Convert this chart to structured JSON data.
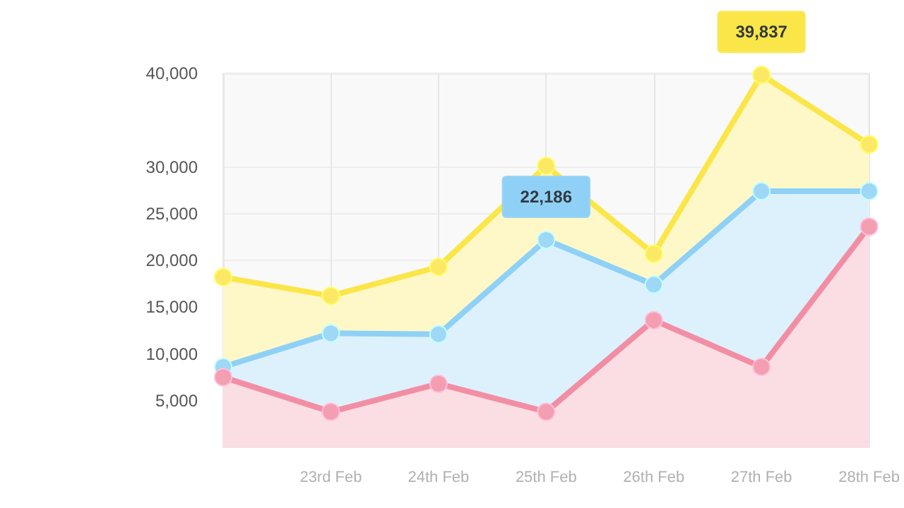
{
  "chart_data": {
    "type": "area",
    "categories": [
      null,
      "23rd Feb",
      "24th Feb",
      "25th Feb",
      "26th Feb",
      "27th Feb",
      "28th Feb"
    ],
    "series": [
      {
        "color": "#fbe64a",
        "values": [
          18200,
          16200,
          19300,
          30100,
          20700,
          39837,
          32400
        ],
        "value_labels": [
          null,
          null,
          null,
          null,
          null,
          "39,837",
          null
        ]
      },
      {
        "color": "#8fd1f6",
        "values": [
          8600,
          12200,
          12100,
          22186,
          17400,
          27400,
          27400
        ],
        "value_labels": [
          null,
          null,
          null,
          "22,186",
          null,
          null,
          null
        ]
      },
      {
        "color": "#f28ea4",
        "values": [
          7500,
          3800,
          6800,
          3800,
          13600,
          8600,
          23600
        ]
      }
    ],
    "ylim": [
      0,
      40000
    ],
    "yticks": [
      {
        "value": 5000,
        "label": "5,000"
      },
      {
        "value": 10000,
        "label": "10,000"
      },
      {
        "value": 15000,
        "label": "15,000"
      },
      {
        "value": 20000,
        "label": "20,000"
      },
      {
        "value": 25000,
        "label": "25,000"
      },
      {
        "value": 30000,
        "label": "30,000"
      },
      {
        "value": 40000,
        "label": "40,000"
      }
    ],
    "grid": true,
    "marker": "circle",
    "line_style": "solid"
  }
}
